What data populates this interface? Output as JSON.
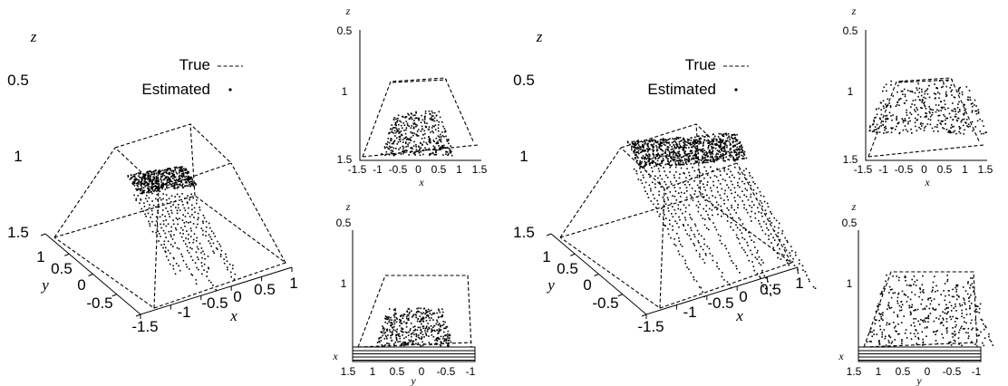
{
  "chart_data": [
    {
      "type": "scatter",
      "subtype": "3d-perspective",
      "title": "",
      "xlabel": "x",
      "ylabel": "y",
      "zlabel": "z",
      "z_ticks": [
        "0.5",
        "1",
        "1.5"
      ],
      "x_ticks": [
        "-1.5",
        "-1",
        "-0.5",
        "0",
        "0.5",
        "1"
      ],
      "y_ticks": [
        "1",
        "0.5",
        "0",
        "-0.5"
      ],
      "xlim": [
        -1.5,
        1
      ],
      "ylim": [
        -0.5,
        1
      ],
      "zlim": [
        0.5,
        1.5
      ],
      "series": [
        {
          "name": "True",
          "style": "dashed",
          "shape": "frustum",
          "top": {
            "x": [
              -0.6,
              0.6
            ],
            "y": [
              -0.6,
              0.6
            ],
            "z": 1.0
          },
          "bottom": {
            "x": [
              -1.5,
              1.5
            ],
            "y": [
              -1.5,
              1.5
            ],
            "z": 1.5
          }
        },
        {
          "name": "Estimated",
          "style": "points",
          "approx_z_top": 1.15
        }
      ],
      "legend": "top-right"
    },
    {
      "type": "scatter",
      "subtype": "projection-xz",
      "xlabel": "x",
      "zlabel": "z",
      "x_ticks": [
        "-1.5",
        "-1",
        "-0.5",
        "0",
        "0.5",
        "1",
        "1.5"
      ],
      "z_ticks": [
        "0.5",
        "1",
        "1.5"
      ],
      "xlim": [
        -1.5,
        1.5
      ],
      "zlim": [
        0.5,
        1.5
      ]
    },
    {
      "type": "scatter",
      "subtype": "projection-yz",
      "xlabel": "y",
      "zlabel": "z",
      "corner_label": "x",
      "x_ticks": [
        "1.5",
        "1",
        "0.5",
        "0",
        "-0.5",
        "-1"
      ],
      "z_ticks": [
        "0.5",
        "1"
      ],
      "xlim": [
        1.5,
        -1
      ],
      "zlim": [
        0.5,
        1.5
      ]
    },
    {
      "type": "scatter",
      "subtype": "3d-perspective",
      "title": "",
      "xlabel": "x",
      "ylabel": "y",
      "zlabel": "z",
      "z_ticks": [
        "0.5",
        "1",
        "1.5"
      ],
      "x_ticks": [
        "-1.5",
        "-1",
        "-0.5",
        "0",
        "0.5",
        "1"
      ],
      "y_ticks": [
        "1",
        "0.5",
        "0",
        "-0.5"
      ],
      "xlim": [
        -1.5,
        1
      ],
      "ylim": [
        -0.5,
        1
      ],
      "zlim": [
        0.5,
        1.5
      ],
      "series": [
        {
          "name": "True",
          "style": "dashed",
          "shape": "frustum",
          "top": {
            "x": [
              -0.6,
              0.6
            ],
            "y": [
              -0.6,
              0.6
            ],
            "z": 1.0
          },
          "bottom": {
            "x": [
              -1.5,
              1.5
            ],
            "y": [
              -1.5,
              1.5
            ],
            "z": 1.5
          }
        },
        {
          "name": "Estimated",
          "style": "points",
          "approx_z_top": 1.0
        }
      ],
      "legend": "top-right"
    },
    {
      "type": "scatter",
      "subtype": "projection-xz",
      "xlabel": "x",
      "zlabel": "z",
      "x_ticks": [
        "-1.5",
        "-1",
        "-0.5",
        "0",
        "0.5",
        "1",
        "1.5"
      ],
      "z_ticks": [
        "0.5",
        "1",
        "1.5"
      ],
      "xlim": [
        -1.5,
        1.5
      ],
      "zlim": [
        0.5,
        1.5
      ]
    },
    {
      "type": "scatter",
      "subtype": "projection-yz",
      "xlabel": "y",
      "zlabel": "z",
      "corner_label": "x",
      "x_ticks": [
        "1.5",
        "1",
        "0.5",
        "0",
        "-0.5",
        "-1"
      ],
      "z_ticks": [
        "0.5",
        "1"
      ],
      "xlim": [
        1.5,
        -1
      ],
      "zlim": [
        0.5,
        1.5
      ]
    }
  ],
  "legend": {
    "true_label": "True",
    "estimated_label": "Estimated"
  }
}
